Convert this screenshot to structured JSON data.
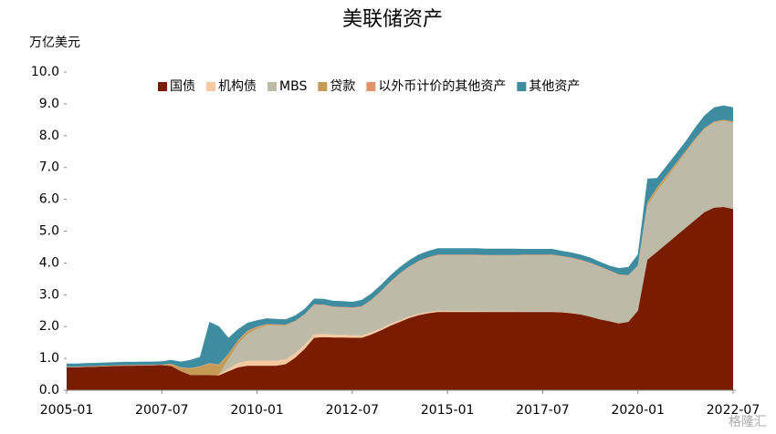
{
  "chart_data": {
    "type": "stacked-area",
    "title": "美联储资产",
    "y_label": "万亿美元",
    "watermark": "格隆汇",
    "categories": [
      "2005-01",
      null,
      null,
      null,
      null,
      null,
      null,
      null,
      null,
      null,
      "2007-07",
      null,
      null,
      null,
      null,
      null,
      null,
      null,
      null,
      null,
      "2010-01",
      null,
      null,
      null,
      null,
      null,
      null,
      null,
      null,
      null,
      "2012-07",
      null,
      null,
      null,
      null,
      null,
      null,
      null,
      null,
      null,
      "2015-01",
      null,
      null,
      null,
      null,
      null,
      null,
      null,
      null,
      null,
      "2017-07",
      null,
      null,
      null,
      null,
      null,
      null,
      null,
      null,
      null,
      "2020-01",
      null,
      null,
      null,
      null,
      null,
      null,
      null,
      null,
      null,
      "2022-07"
    ],
    "ylim": [
      0,
      10
    ],
    "yticks": [
      {
        "value": 0,
        "label": "0.0"
      },
      {
        "value": 1,
        "label": "1.0"
      },
      {
        "value": 2,
        "label": "2.0"
      },
      {
        "value": 3,
        "label": "3.0"
      },
      {
        "value": 4,
        "label": "4.0"
      },
      {
        "value": 5,
        "label": "5.0"
      },
      {
        "value": 6,
        "label": "6.0"
      },
      {
        "value": 7,
        "label": "7.0"
      },
      {
        "value": 8,
        "label": "8.0"
      },
      {
        "value": 9,
        "label": "9.0"
      },
      {
        "value": 10,
        "label": "10.0"
      }
    ],
    "legend": "top",
    "series": [
      {
        "name": "国债",
        "color": "#7a1c00",
        "values": [
          0.72,
          0.72,
          0.73,
          0.74,
          0.75,
          0.76,
          0.77,
          0.77,
          0.78,
          0.78,
          0.79,
          0.76,
          0.6,
          0.48,
          0.48,
          0.48,
          0.47,
          0.6,
          0.72,
          0.77,
          0.77,
          0.77,
          0.77,
          0.82,
          1.02,
          1.3,
          1.65,
          1.67,
          1.66,
          1.66,
          1.65,
          1.65,
          1.75,
          1.88,
          2.03,
          2.15,
          2.27,
          2.36,
          2.42,
          2.46,
          2.46,
          2.46,
          2.46,
          2.46,
          2.46,
          2.46,
          2.46,
          2.46,
          2.46,
          2.46,
          2.46,
          2.46,
          2.45,
          2.42,
          2.38,
          2.31,
          2.23,
          2.17,
          2.1,
          2.15,
          2.5,
          4.1,
          4.35,
          4.6,
          4.85,
          5.1,
          5.35,
          5.6,
          5.74,
          5.76,
          5.7
        ]
      },
      {
        "name": "机构债",
        "color": "#f7c9a0",
        "values": [
          0,
          0,
          0,
          0,
          0,
          0,
          0,
          0,
          0,
          0,
          0,
          0,
          0,
          0,
          0,
          0,
          0.02,
          0.08,
          0.13,
          0.15,
          0.16,
          0.16,
          0.16,
          0.15,
          0.14,
          0.12,
          0.11,
          0.1,
          0.09,
          0.08,
          0.08,
          0.07,
          0.07,
          0.06,
          0.06,
          0.05,
          0.05,
          0.04,
          0.04,
          0.04,
          0.03,
          0.03,
          0.03,
          0.03,
          0.02,
          0.02,
          0.02,
          0.02,
          0.01,
          0.01,
          0.01,
          0.01,
          0.01,
          0.01,
          0,
          0,
          0,
          0,
          0,
          0,
          0,
          0,
          0,
          0,
          0,
          0,
          0,
          0,
          0,
          0,
          0
        ]
      },
      {
        "name": "MBS",
        "color": "#bdbba8",
        "values": [
          0,
          0,
          0,
          0,
          0,
          0,
          0,
          0,
          0,
          0,
          0,
          0,
          0,
          0,
          0,
          0,
          0,
          0.3,
          0.6,
          0.85,
          1.0,
          1.1,
          1.1,
          1.05,
          1.0,
          0.95,
          0.92,
          0.9,
          0.86,
          0.86,
          0.85,
          0.9,
          1.0,
          1.15,
          1.3,
          1.45,
          1.55,
          1.65,
          1.7,
          1.74,
          1.75,
          1.75,
          1.75,
          1.75,
          1.75,
          1.75,
          1.75,
          1.75,
          1.77,
          1.77,
          1.77,
          1.77,
          1.74,
          1.72,
          1.7,
          1.68,
          1.64,
          1.58,
          1.52,
          1.45,
          1.4,
          1.7,
          1.9,
          2.05,
          2.2,
          2.35,
          2.5,
          2.6,
          2.66,
          2.7,
          2.7
        ]
      },
      {
        "name": "贷款",
        "color": "#c49a55",
        "values": [
          0,
          0,
          0,
          0,
          0,
          0,
          0,
          0,
          0,
          0,
          0,
          0.05,
          0.1,
          0.2,
          0.25,
          0.35,
          0.3,
          0.15,
          0.1,
          0.08,
          0.05,
          0.03,
          0.02,
          0.02,
          0,
          0,
          0,
          0,
          0,
          0,
          0,
          0,
          0,
          0,
          0,
          0,
          0,
          0,
          0,
          0,
          0,
          0,
          0,
          0,
          0,
          0,
          0,
          0,
          0,
          0,
          0,
          0,
          0,
          0,
          0,
          0,
          0,
          0,
          0,
          0,
          0,
          0.08,
          0.1,
          0.08,
          0.06,
          0.05,
          0.03,
          0.02,
          0.02,
          0.02,
          0.02
        ]
      },
      {
        "name": "以外币计价的其他资产",
        "color": "#e0946a",
        "values": [
          0.02,
          0.02,
          0.02,
          0.02,
          0.02,
          0.02,
          0.02,
          0.02,
          0.02,
          0.02,
          0.02,
          0.02,
          0.02,
          0.02,
          0.02,
          0.02,
          0.02,
          0.02,
          0.02,
          0.02,
          0.02,
          0.02,
          0.02,
          0.02,
          0.02,
          0.02,
          0.02,
          0.02,
          0.02,
          0.02,
          0.02,
          0.02,
          0.02,
          0.02,
          0.02,
          0.02,
          0.02,
          0.02,
          0.02,
          0.02,
          0.02,
          0.02,
          0.02,
          0.02,
          0.02,
          0.02,
          0.02,
          0.02,
          0.02,
          0.02,
          0.02,
          0.02,
          0.02,
          0.02,
          0.02,
          0.02,
          0.02,
          0.02,
          0.02,
          0.02,
          0.02,
          0.02,
          0.02,
          0.02,
          0.02,
          0.02,
          0.02,
          0.02,
          0.02,
          0.02,
          0.02
        ]
      },
      {
        "name": "其他资产",
        "color": "#3d8ca0",
        "values": [
          0.1,
          0.1,
          0.1,
          0.1,
          0.1,
          0.1,
          0.1,
          0.1,
          0.1,
          0.1,
          0.1,
          0.12,
          0.18,
          0.25,
          0.3,
          1.3,
          1.2,
          0.5,
          0.35,
          0.25,
          0.2,
          0.18,
          0.17,
          0.17,
          0.17,
          0.17,
          0.18,
          0.18,
          0.18,
          0.18,
          0.18,
          0.2,
          0.2,
          0.2,
          0.2,
          0.2,
          0.2,
          0.2,
          0.2,
          0.2,
          0.2,
          0.2,
          0.2,
          0.2,
          0.2,
          0.2,
          0.2,
          0.2,
          0.18,
          0.18,
          0.18,
          0.18,
          0.16,
          0.16,
          0.16,
          0.16,
          0.15,
          0.15,
          0.2,
          0.25,
          0.35,
          0.75,
          0.3,
          0.3,
          0.3,
          0.3,
          0.35,
          0.4,
          0.45,
          0.45,
          0.45
        ]
      }
    ]
  }
}
